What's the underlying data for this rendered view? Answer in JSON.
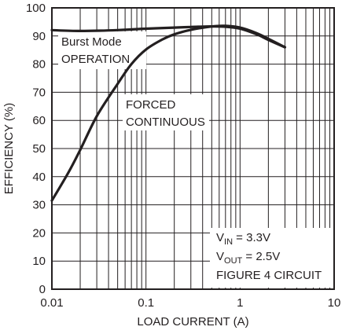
{
  "chart_data": {
    "type": "line",
    "title": "",
    "xlabel": "LOAD CURRENT (A)",
    "ylabel": "EFFICIENCY (%)",
    "xscale": "log",
    "xlim": [
      0.01,
      10
    ],
    "ylim": [
      0,
      100
    ],
    "grid": true,
    "x_tick_labels": [
      "0.01",
      "0.1",
      "1",
      "10"
    ],
    "y_tick_labels": [
      "0",
      "10",
      "20",
      "30",
      "40",
      "50",
      "60",
      "70",
      "80",
      "90",
      "100"
    ],
    "series": [
      {
        "name": "Burst Mode OPERATION",
        "x": [
          0.01,
          0.02,
          0.05,
          0.1,
          0.2,
          0.3,
          0.5,
          0.7,
          1.0,
          1.5,
          2.0,
          3.0
        ],
        "y": [
          92.1,
          91.8,
          92.1,
          92.6,
          93.0,
          93.2,
          93.4,
          93.3,
          92.6,
          90.6,
          88.6,
          86.0
        ]
      },
      {
        "name": "FORCED CONTINUOUS",
        "x": [
          0.01,
          0.015,
          0.02,
          0.03,
          0.05,
          0.07,
          0.1,
          0.15,
          0.2,
          0.3,
          0.5,
          0.7,
          1.0,
          1.5,
          2.0,
          3.0
        ],
        "y": [
          31.5,
          41.5,
          49.5,
          61.5,
          73.0,
          80.0,
          85.2,
          88.8,
          90.6,
          92.2,
          93.4,
          93.6,
          93.0,
          91.0,
          89.0,
          86.0
        ]
      }
    ],
    "annotations": {
      "burst_line1": "Burst Mode",
      "burst_line2": "OPERATION",
      "forced_line1": "FORCED",
      "forced_line2": "CONTINUOUS",
      "vin_main": "V",
      "vin_sub": "IN",
      "vin_value": " = 3.3V",
      "vout_main": "V",
      "vout_sub": "OUT",
      "vout_value": " = 2.5V",
      "circuit": "FIGURE 4 CIRCUIT"
    }
  }
}
